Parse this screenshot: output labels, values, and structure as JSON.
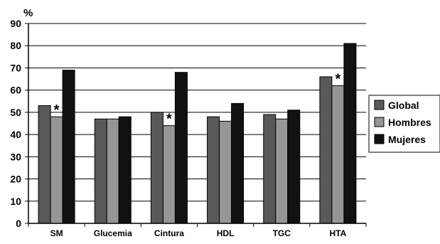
{
  "chart_data": {
    "type": "bar",
    "ylabel": "%",
    "ylim": [
      0,
      90
    ],
    "yticks": [
      0,
      10,
      20,
      30,
      40,
      50,
      60,
      70,
      80,
      90
    ],
    "grid": true,
    "legend_position": "right",
    "categories": [
      "SM",
      "Glucemia",
      "Cintura",
      "HDL",
      "TGC",
      "HTA"
    ],
    "series": [
      {
        "name": "Global",
        "color": "#595959",
        "values": [
          53,
          47,
          50,
          48,
          49,
          66
        ]
      },
      {
        "name": "Hombres",
        "color": "#969696",
        "values": [
          48,
          47,
          44,
          46,
          47,
          62
        ]
      },
      {
        "name": "Mujeres",
        "color": "#111111",
        "values": [
          69,
          48,
          68,
          54,
          51,
          81
        ]
      }
    ],
    "annotations": [
      {
        "text": "*",
        "category": "SM",
        "series": "Hombres"
      },
      {
        "text": "*",
        "category": "Cintura",
        "series": "Hombres"
      },
      {
        "text": "*",
        "category": "HTA",
        "series": "Hombres"
      }
    ]
  }
}
